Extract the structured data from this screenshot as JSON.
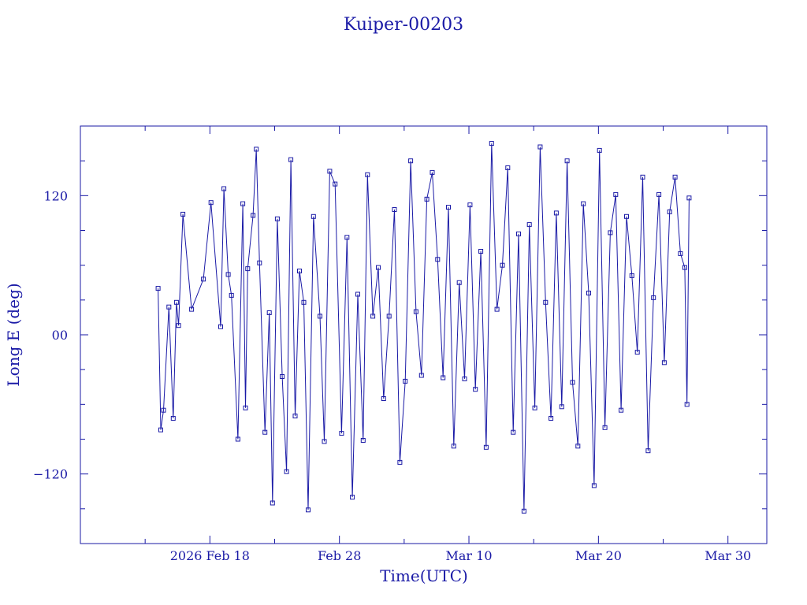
{
  "chart_data": {
    "type": "scatter",
    "title": "Kuiper-00203",
    "xlabel": "Time(UTC)",
    "ylabel": "Long E (deg)",
    "xlim": [
      "2026-02-08T00:00",
      "2026-04-02T00:00"
    ],
    "ylim": [
      -180,
      180
    ],
    "x_ticks": [
      {
        "date": "2026-02-18",
        "label": "2026 Feb 18"
      },
      {
        "date": "2026-02-28",
        "label": "Feb 28"
      },
      {
        "date": "2026-03-10",
        "label": "Mar 10"
      },
      {
        "date": "2026-03-20",
        "label": "Mar 20"
      },
      {
        "date": "2026-03-30",
        "label": "Mar 30"
      }
    ],
    "y_ticks": [
      {
        "value": 120,
        "label": "120"
      },
      {
        "value": 0,
        "label": "00"
      },
      {
        "value": -120,
        "label": "−120"
      }
    ],
    "grid": false,
    "line_color": "#1a1aa6",
    "series": [
      {
        "x": [
          "2026-02-14T00:00",
          "2026-02-14T05:00",
          "2026-02-14T10:00",
          "2026-02-14T20:00",
          "2026-02-15T04:00",
          "2026-02-15T10:00",
          "2026-02-15T14:00",
          "2026-02-15T22:00",
          "2026-02-16T14:00",
          "2026-02-17T12:00",
          "2026-02-18T02:00",
          "2026-02-18T20:00",
          "2026-02-19T02:00",
          "2026-02-19T10:00",
          "2026-02-19T16:00",
          "2026-02-20T04:00",
          "2026-02-20T13:00",
          "2026-02-20T18:00",
          "2026-02-20T22:00",
          "2026-02-21T08:00",
          "2026-02-21T14:00",
          "2026-02-21T20:00",
          "2026-02-22T06:00",
          "2026-02-22T14:00",
          "2026-02-22T20:00",
          "2026-02-23T05:00",
          "2026-02-23T14:00",
          "2026-02-23T22:00",
          "2026-02-24T06:00",
          "2026-02-24T14:00",
          "2026-02-24T22:00",
          "2026-02-25T06:00",
          "2026-02-25T14:00",
          "2026-02-26T00:00",
          "2026-02-26T12:00",
          "2026-02-26T20:00",
          "2026-02-27T06:00",
          "2026-02-27T16:00",
          "2026-02-28T04:00",
          "2026-02-28T14:00",
          "2026-03-01T00:00",
          "2026-03-01T10:00",
          "2026-03-01T20:00",
          "2026-03-02T04:00",
          "2026-03-02T14:00",
          "2026-03-03T00:00",
          "2026-03-03T10:00",
          "2026-03-03T20:00",
          "2026-03-04T06:00",
          "2026-03-04T16:00",
          "2026-03-05T02:00",
          "2026-03-05T12:00",
          "2026-03-05T22:00",
          "2026-03-06T08:00",
          "2026-03-06T18:00",
          "2026-03-07T04:00",
          "2026-03-07T14:00",
          "2026-03-08T00:00",
          "2026-03-08T10:00",
          "2026-03-08T20:00",
          "2026-03-09T06:00",
          "2026-03-09T16:00",
          "2026-03-10T02:00",
          "2026-03-10T12:00",
          "2026-03-10T22:00",
          "2026-03-11T08:00",
          "2026-03-11T18:00",
          "2026-03-12T04:00",
          "2026-03-12T14:00",
          "2026-03-13T00:00",
          "2026-03-13T10:00",
          "2026-03-13T20:00",
          "2026-03-14T06:00",
          "2026-03-14T16:00",
          "2026-03-15T02:00",
          "2026-03-15T12:00",
          "2026-03-15T22:00",
          "2026-03-16T08:00",
          "2026-03-16T18:00",
          "2026-03-17T04:00",
          "2026-03-17T14:00",
          "2026-03-18T00:00",
          "2026-03-18T10:00",
          "2026-03-18T20:00",
          "2026-03-19T06:00",
          "2026-03-19T16:00",
          "2026-03-20T02:00",
          "2026-03-20T12:00",
          "2026-03-20T22:00",
          "2026-03-21T08:00",
          "2026-03-21T18:00",
          "2026-03-22T04:00",
          "2026-03-22T14:00",
          "2026-03-23T00:00",
          "2026-03-23T10:00",
          "2026-03-23T20:00",
          "2026-03-24T06:00",
          "2026-03-24T16:00",
          "2026-03-25T02:00",
          "2026-03-25T12:00",
          "2026-03-25T22:00",
          "2026-03-26T08:00",
          "2026-03-26T16:00",
          "2026-03-26T20:00",
          "2026-03-27T00:00"
        ],
        "y": [
          40,
          -82,
          -65,
          24,
          -72,
          28,
          8,
          104,
          22,
          48,
          114,
          7,
          126,
          52,
          34,
          -90,
          113,
          -63,
          57,
          103,
          160,
          62,
          -84,
          19,
          -145,
          100,
          -36,
          -118,
          151,
          -70,
          55,
          28,
          -151,
          102,
          16,
          -92,
          141,
          130,
          -85,
          84,
          -140,
          35,
          -91,
          138,
          16,
          58,
          -55,
          16,
          108,
          -110,
          -40,
          150,
          20,
          -35,
          117,
          140,
          65,
          -37,
          110,
          -96,
          45,
          -38,
          112,
          -47,
          72,
          -97,
          165,
          22,
          60,
          144,
          -84,
          87,
          -152,
          95,
          -63,
          162,
          28,
          -72,
          105,
          -62,
          150,
          -41,
          -96,
          113,
          36,
          -130,
          159,
          -80,
          88,
          121,
          -65,
          102,
          51,
          -15,
          136,
          -100,
          32,
          121,
          -24,
          106,
          136,
          70,
          58,
          -60,
          118
        ]
      }
    ]
  }
}
